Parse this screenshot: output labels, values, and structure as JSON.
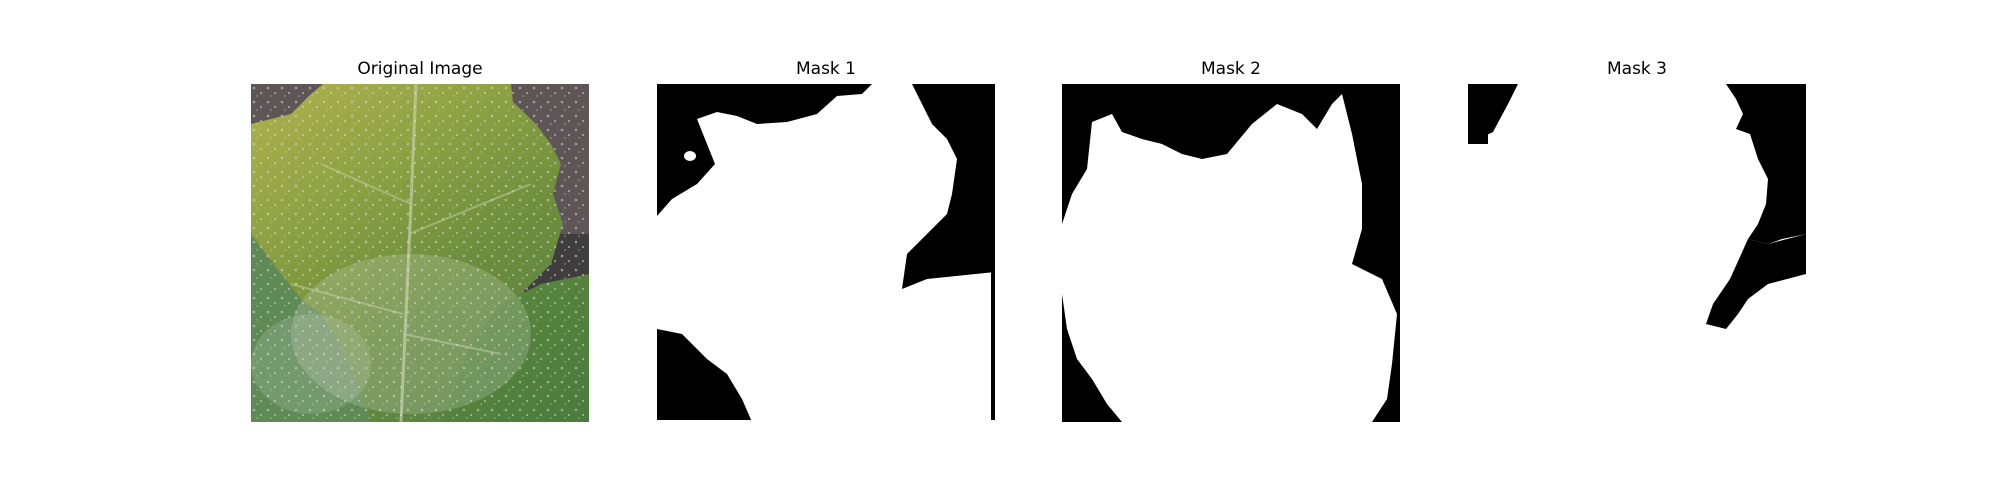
{
  "figure": {
    "panels": [
      {
        "title": "Original Image",
        "image": "leaf-photo"
      },
      {
        "title": "Mask 1",
        "image": "segmentation-mask"
      },
      {
        "title": "Mask 2",
        "image": "segmentation-mask"
      },
      {
        "title": "Mask 3",
        "image": "segmentation-mask"
      }
    ]
  },
  "colors": {
    "background": "#ffffff",
    "mask_foreground": "#ffffff",
    "mask_background": "#000000",
    "leaf_yellow_green": "#a8b04a",
    "leaf_green": "#6f8f3a",
    "leaf_dark_green": "#4f7a38",
    "powdery_mildew": "#c8d2c8",
    "backdrop_gray": "#5f5658"
  }
}
